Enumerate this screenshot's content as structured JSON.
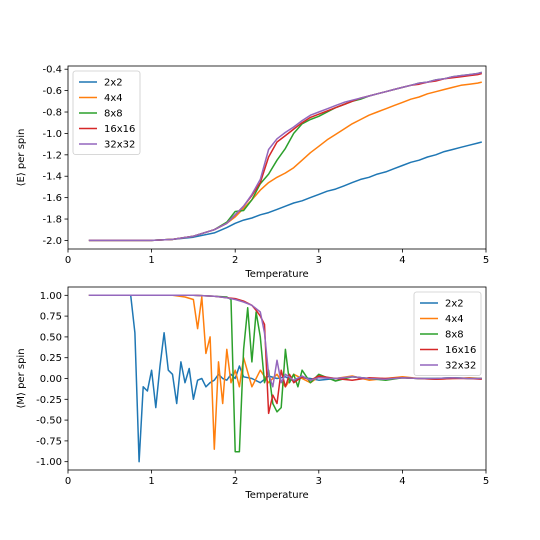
{
  "chart_data": [
    {
      "type": "line",
      "xlabel": "Temperature",
      "ylabel": "⟨E⟩ per spin",
      "xlim": [
        0,
        5
      ],
      "ylim": [
        -2.08,
        -0.37
      ],
      "xticks": [
        "0",
        "1",
        "2",
        "3",
        "4",
        "5"
      ],
      "yticks": [
        "-2.0",
        "-1.8",
        "-1.6",
        "-1.4",
        "-1.2",
        "-1.0",
        "-0.8",
        "-0.6",
        "-0.4"
      ],
      "legend_position": "top-left",
      "grid": false,
      "series": [
        {
          "name": "2x2",
          "color": "#1f77b4",
          "x": [
            0.25,
            0.5,
            0.75,
            1.0,
            1.25,
            1.5,
            1.75,
            1.9,
            2.0,
            2.1,
            2.2,
            2.3,
            2.4,
            2.5,
            2.6,
            2.7,
            2.8,
            2.9,
            3.0,
            3.1,
            3.2,
            3.3,
            3.4,
            3.5,
            3.6,
            3.7,
            3.8,
            3.9,
            4.0,
            4.1,
            4.2,
            4.3,
            4.4,
            4.5,
            4.6,
            4.7,
            4.8,
            4.9,
            4.95
          ],
          "values": [
            -2.0,
            -2.0,
            -2.0,
            -2.0,
            -1.99,
            -1.97,
            -1.93,
            -1.88,
            -1.84,
            -1.81,
            -1.79,
            -1.76,
            -1.74,
            -1.71,
            -1.68,
            -1.65,
            -1.63,
            -1.6,
            -1.57,
            -1.54,
            -1.52,
            -1.49,
            -1.46,
            -1.43,
            -1.41,
            -1.38,
            -1.36,
            -1.33,
            -1.3,
            -1.27,
            -1.25,
            -1.22,
            -1.2,
            -1.17,
            -1.15,
            -1.13,
            -1.11,
            -1.09,
            -1.08
          ]
        },
        {
          "name": "4x4",
          "color": "#ff7f0e",
          "x": [
            0.25,
            0.5,
            0.75,
            1.0,
            1.25,
            1.5,
            1.75,
            1.9,
            2.0,
            2.1,
            2.2,
            2.3,
            2.4,
            2.5,
            2.6,
            2.7,
            2.8,
            2.9,
            3.0,
            3.1,
            3.2,
            3.3,
            3.4,
            3.5,
            3.6,
            3.7,
            3.8,
            3.9,
            4.0,
            4.1,
            4.2,
            4.3,
            4.4,
            4.5,
            4.6,
            4.7,
            4.8,
            4.9,
            4.95
          ],
          "values": [
            -2.0,
            -2.0,
            -2.0,
            -2.0,
            -1.99,
            -1.96,
            -1.9,
            -1.84,
            -1.78,
            -1.7,
            -1.62,
            -1.53,
            -1.46,
            -1.41,
            -1.37,
            -1.32,
            -1.25,
            -1.18,
            -1.12,
            -1.06,
            -1.01,
            -0.96,
            -0.91,
            -0.87,
            -0.83,
            -0.8,
            -0.77,
            -0.74,
            -0.71,
            -0.68,
            -0.66,
            -0.63,
            -0.61,
            -0.59,
            -0.57,
            -0.55,
            -0.54,
            -0.53,
            -0.52
          ]
        },
        {
          "name": "8x8",
          "color": "#2ca02c",
          "x": [
            0.25,
            0.5,
            0.75,
            1.0,
            1.25,
            1.5,
            1.75,
            1.9,
            2.0,
            2.1,
            2.2,
            2.3,
            2.4,
            2.5,
            2.6,
            2.7,
            2.8,
            2.9,
            3.0,
            3.1,
            3.2,
            3.3,
            3.4,
            3.5,
            3.6,
            3.7,
            3.8,
            3.9,
            4.0,
            4.1,
            4.2,
            4.3,
            4.4,
            4.5,
            4.6,
            4.7,
            4.8,
            4.9,
            4.95
          ],
          "values": [
            -2.0,
            -2.0,
            -2.0,
            -2.0,
            -1.99,
            -1.96,
            -1.9,
            -1.83,
            -1.73,
            -1.72,
            -1.62,
            -1.47,
            -1.38,
            -1.25,
            -1.14,
            -1.0,
            -0.91,
            -0.87,
            -0.84,
            -0.8,
            -0.76,
            -0.73,
            -0.7,
            -0.68,
            -0.65,
            -0.63,
            -0.61,
            -0.59,
            -0.57,
            -0.55,
            -0.53,
            -0.52,
            -0.5,
            -0.49,
            -0.47,
            -0.46,
            -0.45,
            -0.44,
            -0.43
          ]
        },
        {
          "name": "16x16",
          "color": "#d62728",
          "x": [
            0.25,
            0.5,
            0.75,
            1.0,
            1.25,
            1.5,
            1.75,
            1.9,
            2.0,
            2.1,
            2.2,
            2.3,
            2.4,
            2.5,
            2.6,
            2.7,
            2.8,
            2.9,
            3.0,
            3.1,
            3.2,
            3.3,
            3.4,
            3.5,
            3.6,
            3.7,
            3.8,
            3.9,
            4.0,
            4.1,
            4.2,
            4.3,
            4.4,
            4.5,
            4.6,
            4.7,
            4.8,
            4.9,
            4.95
          ],
          "values": [
            -2.0,
            -2.0,
            -2.0,
            -2.0,
            -1.99,
            -1.96,
            -1.9,
            -1.84,
            -1.76,
            -1.68,
            -1.58,
            -1.46,
            -1.22,
            -1.08,
            -1.02,
            -0.96,
            -0.9,
            -0.85,
            -0.82,
            -0.79,
            -0.76,
            -0.73,
            -0.7,
            -0.67,
            -0.65,
            -0.63,
            -0.61,
            -0.59,
            -0.57,
            -0.55,
            -0.54,
            -0.52,
            -0.51,
            -0.49,
            -0.48,
            -0.47,
            -0.46,
            -0.45,
            -0.44
          ]
        },
        {
          "name": "32x32",
          "color": "#9467bd",
          "x": [
            0.25,
            0.5,
            0.75,
            1.0,
            1.25,
            1.5,
            1.75,
            1.9,
            2.0,
            2.1,
            2.2,
            2.3,
            2.4,
            2.5,
            2.6,
            2.7,
            2.8,
            2.9,
            3.0,
            3.1,
            3.2,
            3.3,
            3.4,
            3.5,
            3.6,
            3.7,
            3.8,
            3.9,
            4.0,
            4.1,
            4.2,
            4.3,
            4.4,
            4.5,
            4.6,
            4.7,
            4.8,
            4.9,
            4.95
          ],
          "values": [
            -2.0,
            -2.0,
            -2.0,
            -2.0,
            -1.99,
            -1.96,
            -1.9,
            -1.84,
            -1.76,
            -1.68,
            -1.57,
            -1.43,
            -1.15,
            -1.05,
            -0.99,
            -0.94,
            -0.88,
            -0.83,
            -0.8,
            -0.77,
            -0.74,
            -0.71,
            -0.69,
            -0.67,
            -0.65,
            -0.63,
            -0.61,
            -0.59,
            -0.57,
            -0.55,
            -0.53,
            -0.52,
            -0.5,
            -0.49,
            -0.47,
            -0.46,
            -0.45,
            -0.44,
            -0.43
          ]
        }
      ]
    },
    {
      "type": "line",
      "xlabel": "Temperature",
      "ylabel": "⟨M⟩ per spin",
      "xlim": [
        0,
        5
      ],
      "ylim": [
        -1.1,
        1.1
      ],
      "xticks": [
        "0",
        "1",
        "2",
        "3",
        "4",
        "5"
      ],
      "yticks": [
        "-1.00",
        "-0.75",
        "-0.50",
        "-0.25",
        "0.00",
        "0.25",
        "0.50",
        "0.75",
        "1.00"
      ],
      "legend_position": "top-right",
      "grid": false,
      "series": [
        {
          "name": "2x2",
          "color": "#1f77b4",
          "x": [
            0.25,
            0.5,
            0.6,
            0.7,
            0.75,
            0.8,
            0.85,
            0.9,
            0.95,
            1.0,
            1.05,
            1.1,
            1.15,
            1.2,
            1.25,
            1.3,
            1.35,
            1.4,
            1.45,
            1.5,
            1.55,
            1.6,
            1.65,
            1.7,
            1.75,
            1.8,
            1.85,
            1.9,
            1.95,
            2.0,
            2.05,
            2.1,
            2.2,
            2.3,
            2.4,
            2.5,
            2.6,
            2.7,
            2.8,
            2.9,
            3.0,
            3.2,
            3.4,
            3.6,
            3.8,
            4.0,
            4.2,
            4.4,
            4.6,
            4.8,
            4.95
          ],
          "values": [
            1.0,
            1.0,
            1.0,
            1.0,
            1.0,
            0.55,
            -1.0,
            -0.1,
            -0.15,
            0.1,
            -0.35,
            0.15,
            0.55,
            0.1,
            0.05,
            -0.3,
            0.2,
            -0.05,
            0.12,
            -0.25,
            -0.02,
            0.0,
            -0.1,
            -0.05,
            -0.02,
            0.05,
            0.0,
            -0.02,
            0.05,
            0.0,
            0.15,
            0.02,
            0.0,
            -0.05,
            0.03,
            0.0,
            0.02,
            -0.03,
            0.01,
            0.0,
            -0.02,
            0.0,
            0.02,
            0.0,
            -0.01,
            0.01,
            0.0,
            0.0,
            0.01,
            0.0,
            0.0
          ]
        },
        {
          "name": "4x4",
          "color": "#ff7f0e",
          "x": [
            0.25,
            0.5,
            0.75,
            1.0,
            1.25,
            1.4,
            1.5,
            1.55,
            1.6,
            1.65,
            1.7,
            1.75,
            1.8,
            1.85,
            1.9,
            1.95,
            2.0,
            2.05,
            2.1,
            2.2,
            2.3,
            2.4,
            2.5,
            2.6,
            2.7,
            2.8,
            2.9,
            3.0,
            3.2,
            3.4,
            3.6,
            3.8,
            4.0,
            4.2,
            4.4,
            4.6,
            4.8,
            4.95
          ],
          "values": [
            1.0,
            1.0,
            1.0,
            1.0,
            1.0,
            0.98,
            0.95,
            0.6,
            0.98,
            0.3,
            0.5,
            -0.85,
            0.2,
            -0.3,
            0.35,
            -0.05,
            0.1,
            -0.1,
            0.25,
            -0.1,
            0.1,
            -0.05,
            0.05,
            -0.1,
            0.05,
            0.0,
            -0.05,
            0.02,
            0.0,
            0.03,
            -0.02,
            0.0,
            0.02,
            0.0,
            -0.01,
            0.0,
            0.01,
            0.0
          ]
        },
        {
          "name": "8x8",
          "color": "#2ca02c",
          "x": [
            0.25,
            0.5,
            0.75,
            1.0,
            1.25,
            1.5,
            1.75,
            1.9,
            1.95,
            2.0,
            2.05,
            2.1,
            2.15,
            2.2,
            2.25,
            2.3,
            2.35,
            2.4,
            2.45,
            2.5,
            2.55,
            2.6,
            2.65,
            2.7,
            2.75,
            2.8,
            2.9,
            3.0,
            3.2,
            3.4,
            3.6,
            3.8,
            4.0,
            4.2,
            4.4,
            4.6,
            4.8,
            4.95
          ],
          "values": [
            1.0,
            1.0,
            1.0,
            1.0,
            1.0,
            1.0,
            0.99,
            0.98,
            0.95,
            -0.88,
            -0.88,
            0.35,
            0.85,
            0.2,
            0.8,
            0.5,
            -0.05,
            0.1,
            -0.3,
            -0.4,
            -0.35,
            0.35,
            -0.05,
            0.05,
            -0.1,
            0.1,
            -0.05,
            0.05,
            -0.03,
            0.02,
            0.0,
            -0.02,
            0.01,
            0.0,
            0.0,
            0.01,
            0.0,
            0.0
          ]
        },
        {
          "name": "16x16",
          "color": "#d62728",
          "x": [
            0.25,
            0.5,
            0.75,
            1.0,
            1.25,
            1.5,
            1.75,
            1.9,
            2.0,
            2.1,
            2.2,
            2.25,
            2.3,
            2.35,
            2.4,
            2.45,
            2.5,
            2.55,
            2.6,
            2.65,
            2.7,
            2.8,
            2.9,
            3.0,
            3.2,
            3.4,
            3.6,
            3.8,
            4.0,
            4.2,
            4.4,
            4.6,
            4.8,
            4.95
          ],
          "values": [
            1.0,
            1.0,
            1.0,
            1.0,
            1.0,
            1.0,
            0.99,
            0.97,
            0.96,
            0.93,
            0.88,
            0.82,
            0.75,
            0.65,
            -0.42,
            -0.2,
            -0.3,
            0.1,
            -0.1,
            0.05,
            -0.05,
            0.02,
            -0.02,
            0.03,
            0.0,
            -0.02,
            0.01,
            0.0,
            0.01,
            0.0,
            -0.01,
            0.0,
            0.0,
            -0.01
          ]
        },
        {
          "name": "32x32",
          "color": "#9467bd",
          "x": [
            0.25,
            0.5,
            0.75,
            1.0,
            1.25,
            1.5,
            1.75,
            1.9,
            2.0,
            2.1,
            2.2,
            2.3,
            2.35,
            2.4,
            2.45,
            2.5,
            2.55,
            2.6,
            2.7,
            2.8,
            2.9,
            3.0,
            3.2,
            3.4,
            3.6,
            3.8,
            4.0,
            4.2,
            4.4,
            4.6,
            4.8,
            4.95
          ],
          "values": [
            1.0,
            1.0,
            1.0,
            1.0,
            1.0,
            1.0,
            0.99,
            0.97,
            0.95,
            0.92,
            0.88,
            0.8,
            0.55,
            0.05,
            -0.1,
            0.22,
            -0.05,
            0.05,
            -0.02,
            0.03,
            -0.02,
            0.01,
            0.0,
            0.02,
            0.0,
            -0.01,
            0.01,
            0.0,
            0.0,
            0.01,
            0.0,
            0.0
          ]
        }
      ]
    }
  ]
}
